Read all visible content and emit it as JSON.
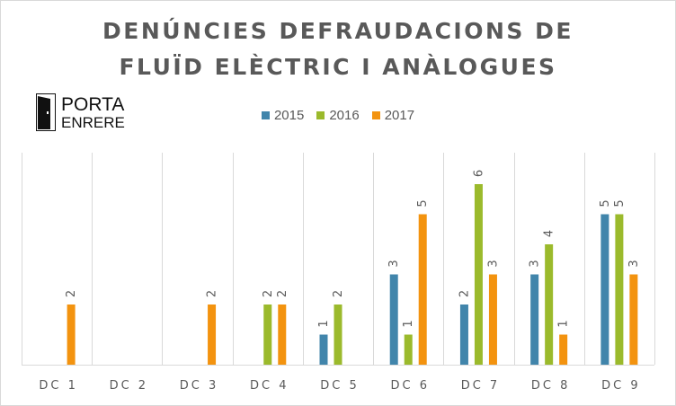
{
  "title_line1": "DENÚNCIES DEFRAUDACIONS DE",
  "title_line2": "FLUÏD ELÈCTRIC I ANÀLOGUES",
  "logo": {
    "word1": "PORTA",
    "word2": "ENRERE"
  },
  "colors": {
    "2015": "#4185ab",
    "2016": "#9bba2c",
    "2017": "#f3930f",
    "grid": "#d9d9d9",
    "text": "#595959"
  },
  "chart_data": {
    "type": "bar",
    "title": "DENÚNCIES DEFRAUDACIONS DE FLUÏD ELÈCTRIC I ANÀLOGUES",
    "categories": [
      "DC 1",
      "DC 2",
      "DC 3",
      "DC 4",
      "DC 5",
      "DC 6",
      "DC 7",
      "DC 8",
      "DC 9"
    ],
    "series": [
      {
        "name": "2015",
        "values": [
          0,
          0,
          0,
          0,
          1,
          3,
          2,
          3,
          5
        ]
      },
      {
        "name": "2016",
        "values": [
          0,
          0,
          0,
          2,
          2,
          1,
          6,
          4,
          5
        ]
      },
      {
        "name": "2017",
        "values": [
          2,
          0,
          2,
          2,
          0,
          5,
          3,
          1,
          3
        ]
      }
    ],
    "ylim": [
      0,
      7
    ],
    "legend_position": "top",
    "data_labels": true,
    "grid": "vertical category separators"
  }
}
